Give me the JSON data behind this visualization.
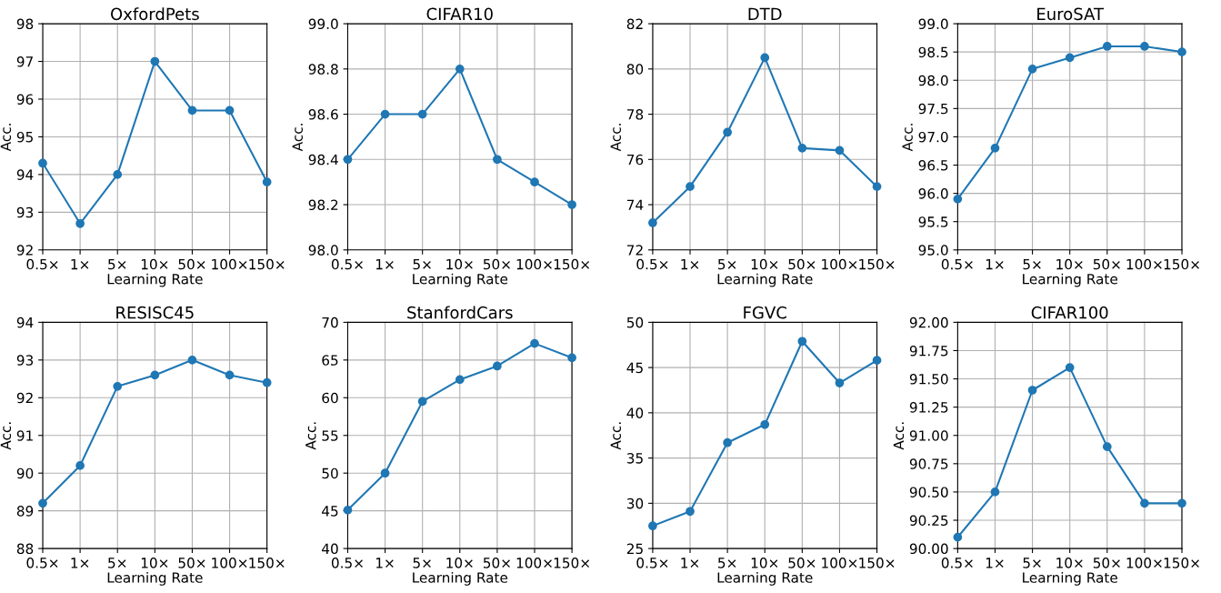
{
  "chart_data": [
    {
      "type": "line",
      "title": "OxfordPets",
      "xlabel": "Learning Rate",
      "ylabel": "Acc.",
      "categories": [
        "0.5×",
        "1×",
        "5×",
        "10×",
        "50×",
        "100×",
        "150×"
      ],
      "series": [
        {
          "color": "#1f77b4",
          "values": [
            94.3,
            92.7,
            94.0,
            97.0,
            95.7,
            95.7,
            93.8
          ]
        }
      ],
      "ylim": [
        92,
        98
      ],
      "yticks": [
        92,
        93,
        94,
        95,
        96,
        97,
        98
      ],
      "grid": true,
      "marker": "circle",
      "line_style": "solid"
    },
    {
      "type": "line",
      "title": "CIFAR10",
      "xlabel": "Learning Rate",
      "ylabel": "Acc.",
      "categories": [
        "0.5×",
        "1×",
        "5×",
        "10×",
        "50×",
        "100×",
        "150×"
      ],
      "series": [
        {
          "color": "#1f77b4",
          "values": [
            98.4,
            98.6,
            98.6,
            98.8,
            98.4,
            98.3,
            98.2
          ]
        }
      ],
      "ylim": [
        98.0,
        99.0
      ],
      "yticks": [
        {
          "value": 98.0,
          "label": "98.0"
        },
        {
          "value": 98.2,
          "label": "98.2"
        },
        {
          "value": 98.4,
          "label": "98.4"
        },
        {
          "value": 98.6,
          "label": "98.6"
        },
        {
          "value": 98.8,
          "label": "98.8"
        },
        {
          "value": 99.0,
          "label": "99.0"
        }
      ],
      "grid": true,
      "marker": "circle",
      "line_style": "solid"
    },
    {
      "type": "line",
      "title": "DTD",
      "xlabel": "Learning Rate",
      "ylabel": "Acc.",
      "categories": [
        "0.5×",
        "1×",
        "5×",
        "10×",
        "50×",
        "100×",
        "150×"
      ],
      "series": [
        {
          "color": "#1f77b4",
          "values": [
            73.2,
            74.8,
            77.2,
            80.5,
            76.5,
            76.4,
            74.8
          ]
        }
      ],
      "ylim": [
        72,
        82
      ],
      "yticks": [
        72,
        74,
        76,
        78,
        80,
        82
      ],
      "grid": true,
      "marker": "circle",
      "line_style": "solid"
    },
    {
      "type": "line",
      "title": "EuroSAT",
      "xlabel": "Learning Rate",
      "ylabel": "Acc.",
      "categories": [
        "0.5×",
        "1×",
        "5×",
        "10×",
        "50×",
        "100×",
        "150×"
      ],
      "series": [
        {
          "color": "#1f77b4",
          "values": [
            95.9,
            96.8,
            98.2,
            98.4,
            98.6,
            98.6,
            98.5
          ]
        }
      ],
      "ylim": [
        95.0,
        99.0
      ],
      "yticks": [
        {
          "value": 95.0,
          "label": "95.0"
        },
        {
          "value": 95.5,
          "label": "95.5"
        },
        {
          "value": 96.0,
          "label": "96.0"
        },
        {
          "value": 96.5,
          "label": "96.5"
        },
        {
          "value": 97.0,
          "label": "97.0"
        },
        {
          "value": 97.5,
          "label": "97.5"
        },
        {
          "value": 98.0,
          "label": "98.0"
        },
        {
          "value": 98.5,
          "label": "98.5"
        },
        {
          "value": 99.0,
          "label": "99.0"
        }
      ],
      "grid": true,
      "marker": "circle",
      "line_style": "solid"
    },
    {
      "type": "line",
      "title": "RESISC45",
      "xlabel": "Learning Rate",
      "ylabel": "Acc.",
      "categories": [
        "0.5×",
        "1×",
        "5×",
        "10×",
        "50×",
        "100×",
        "150×"
      ],
      "series": [
        {
          "color": "#1f77b4",
          "values": [
            89.2,
            90.2,
            92.3,
            92.6,
            93.0,
            92.6,
            92.4
          ]
        }
      ],
      "ylim": [
        88,
        94
      ],
      "yticks": [
        88,
        89,
        90,
        91,
        92,
        93,
        94
      ],
      "grid": true,
      "marker": "circle",
      "line_style": "solid"
    },
    {
      "type": "line",
      "title": "StanfordCars",
      "xlabel": "Learning Rate",
      "ylabel": "Acc.",
      "categories": [
        "0.5×",
        "1×",
        "5×",
        "10×",
        "50×",
        "100×",
        "150×"
      ],
      "series": [
        {
          "color": "#1f77b4",
          "values": [
            45.1,
            50.0,
            59.5,
            62.4,
            64.2,
            67.2,
            65.3
          ]
        }
      ],
      "ylim": [
        40,
        70
      ],
      "yticks": [
        40,
        45,
        50,
        55,
        60,
        65,
        70
      ],
      "grid": true,
      "marker": "circle",
      "line_style": "solid"
    },
    {
      "type": "line",
      "title": "FGVC",
      "xlabel": "Learning Rate",
      "ylabel": "Acc.",
      "categories": [
        "0.5×",
        "1×",
        "5×",
        "10×",
        "50×",
        "100×",
        "150×"
      ],
      "series": [
        {
          "color": "#1f77b4",
          "values": [
            27.5,
            29.1,
            36.7,
            38.7,
            47.9,
            43.3,
            45.8
          ]
        }
      ],
      "ylim": [
        25,
        50
      ],
      "yticks": [
        25,
        30,
        35,
        40,
        45,
        50
      ],
      "grid": true,
      "marker": "circle",
      "line_style": "solid"
    },
    {
      "type": "line",
      "title": "CIFAR100",
      "xlabel": "Learning Rate",
      "ylabel": "Acc.",
      "categories": [
        "0.5×",
        "1×",
        "5×",
        "10×",
        "50×",
        "100×",
        "150×"
      ],
      "series": [
        {
          "color": "#1f77b4",
          "values": [
            90.1,
            90.5,
            91.4,
            91.6,
            90.9,
            90.4,
            90.4
          ]
        }
      ],
      "ylim": [
        90.0,
        92.0
      ],
      "yticks": [
        {
          "value": 90.0,
          "label": "90.00"
        },
        {
          "value": 90.25,
          "label": "90.25"
        },
        {
          "value": 90.5,
          "label": "90.50"
        },
        {
          "value": 90.75,
          "label": "90.75"
        },
        {
          "value": 91.0,
          "label": "91.00"
        },
        {
          "value": 91.25,
          "label": "91.25"
        },
        {
          "value": 91.5,
          "label": "91.50"
        },
        {
          "value": 91.75,
          "label": "91.75"
        },
        {
          "value": 92.0,
          "label": "92.00"
        }
      ],
      "grid": true,
      "marker": "circle",
      "line_style": "solid"
    }
  ]
}
